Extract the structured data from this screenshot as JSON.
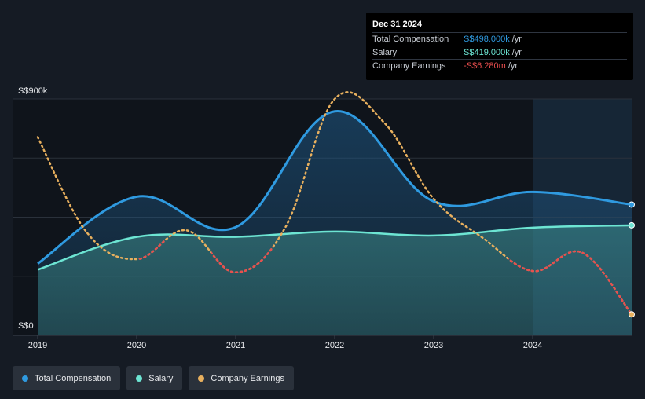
{
  "tooltip": {
    "date": "Dec 31 2024",
    "rows": [
      {
        "label": "Total Compensation",
        "value": "S$498.000k",
        "unit": "/yr",
        "color": "#2f9ae0"
      },
      {
        "label": "Salary",
        "value": "S$419.000k",
        "unit": "/yr",
        "color": "#6de5d3"
      },
      {
        "label": "Company Earnings",
        "value": "-S$6.280m",
        "unit": "/yr",
        "color": "#e94e4e"
      }
    ]
  },
  "legend": [
    {
      "label": "Total Compensation",
      "color": "#2f9ae0"
    },
    {
      "label": "Salary",
      "color": "#6de5d3"
    },
    {
      "label": "Company Earnings",
      "color": "#e8b05e"
    }
  ],
  "chart_data": {
    "type": "line",
    "y_axis_labels": [
      "S$900k",
      "S$0"
    ],
    "ylim": [
      0,
      900
    ],
    "xlim": [
      2019,
      2025
    ],
    "x_ticks": [
      2019,
      2020,
      2021,
      2022,
      2023,
      2024
    ],
    "x_tick_labels": [
      "2019",
      "2020",
      "2021",
      "2022",
      "2023",
      "2024"
    ],
    "grid": true,
    "legend_position": "bottom-left",
    "forecast_start": 2024,
    "series": [
      {
        "name": "Total Compensation",
        "color": "#2f9ae0",
        "fill": true,
        "x": [
          2019.0,
          2020.0,
          2021.0,
          2022.0,
          2023.0,
          2024.0,
          2025.0
        ],
        "values": [
          273,
          528,
          412,
          853,
          510,
          546,
          498
        ]
      },
      {
        "name": "Salary",
        "color": "#6de5d3",
        "fill": true,
        "x": [
          2019.0,
          2020.0,
          2021.0,
          2022.0,
          2023.0,
          2024.0,
          2025.0
        ],
        "values": [
          250,
          375,
          375,
          395,
          380,
          410,
          419
        ]
      },
      {
        "name": "Company Earnings",
        "color": "#e8b05e",
        "negative_color": "#e94e4e",
        "dashed": true,
        "x": [
          2019.0,
          2019.5,
          2020.0,
          2020.5,
          2021.0,
          2021.5,
          2022.0,
          2022.5,
          2023.0,
          2023.5,
          2024.0,
          2024.5,
          2025.0
        ],
        "values": [
          755,
          390,
          290,
          400,
          240,
          410,
          900,
          810,
          520,
          370,
          245,
          315,
          80
        ],
        "negative_x": [
          [
            2020.0,
            2020.25
          ],
          [
            2020.75,
            2021.35
          ],
          [
            2023.75,
            2025.0
          ]
        ]
      }
    ]
  }
}
